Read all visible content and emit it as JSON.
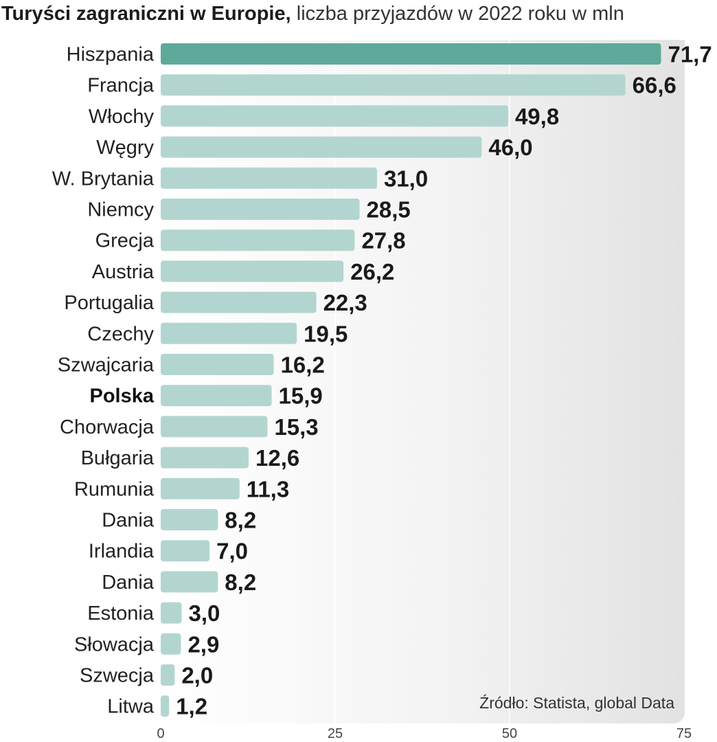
{
  "chart_data": {
    "type": "bar",
    "orientation": "horizontal",
    "title": "Turyści zagraniczni w Europie,",
    "subtitle": "liczba przyjazdów w 2022 roku w mln",
    "categories": [
      "Hiszpania",
      "Francja",
      "Włochy",
      "Węgry",
      "W. Brytania",
      "Niemcy",
      "Grecja",
      "Austria",
      "Portugalia",
      "Czechy",
      "Szwajcaria",
      "Polska",
      "Chorwacja",
      "Bułgaria",
      "Rumunia",
      "Dania",
      "Irlandia",
      "Dania",
      "Estonia",
      "Słowacja",
      "Szwecja",
      "Litwa"
    ],
    "values": [
      71.7,
      66.6,
      49.8,
      46.0,
      31.0,
      28.5,
      27.8,
      26.2,
      22.3,
      19.5,
      16.2,
      15.9,
      15.3,
      12.6,
      11.3,
      8.2,
      7.0,
      8.2,
      3.0,
      2.9,
      2.0,
      1.2
    ],
    "value_labels": [
      "71,7",
      "66,6",
      "49,8",
      "46,0",
      "31,0",
      "28,5",
      "27,8",
      "26,2",
      "22,3",
      "19,5",
      "16,2",
      "15,9",
      "15,3",
      "12,6",
      "11,3",
      "8,2",
      "7,0",
      "8,2",
      "3,0",
      "2,9",
      "2,0",
      "1,2"
    ],
    "highlight_index": 0,
    "bold_category": "Polska",
    "xlim": [
      0,
      75
    ],
    "xticks": [
      0,
      25,
      50,
      75
    ],
    "xtick_labels": [
      "0",
      "25",
      "50",
      "75"
    ],
    "grid": true,
    "source": "Źródło:  Statista, global Data",
    "colors": {
      "highlight_bar": "#5ea99a",
      "bar": "#b2d6cf",
      "text": "#1a1a1a"
    }
  }
}
